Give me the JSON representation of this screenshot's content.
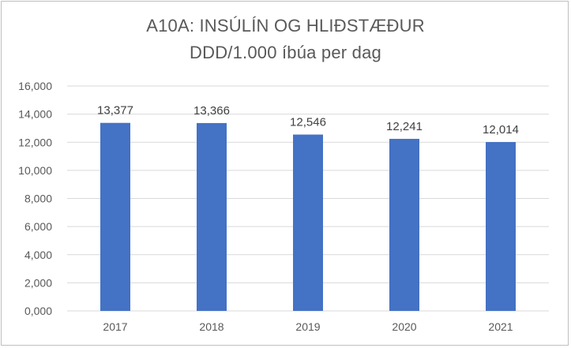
{
  "chart_data": {
    "type": "bar",
    "title": "A10A: INSÚLÍN OG HLIÐSTÆÐUR",
    "subtitle": "DDD/1.000 íbúa per dag",
    "categories": [
      "2017",
      "2018",
      "2019",
      "2020",
      "2021"
    ],
    "values": [
      13.377,
      13.366,
      12.546,
      12.241,
      12.014
    ],
    "data_labels": [
      "13,377",
      "13,366",
      "12,546",
      "12,241",
      "12,014"
    ],
    "y_tick_labels": [
      "0,000",
      "2,000",
      "4,000",
      "6,000",
      "8,000",
      "10,000",
      "12,000",
      "14,000",
      "16,000"
    ],
    "ylim": [
      0,
      16
    ],
    "y_ticks": [
      0,
      2,
      4,
      6,
      8,
      10,
      12,
      14,
      16
    ],
    "grid": true,
    "legend": "none",
    "bar_color": "#4472c4",
    "grid_color": "#d9d9d9"
  }
}
